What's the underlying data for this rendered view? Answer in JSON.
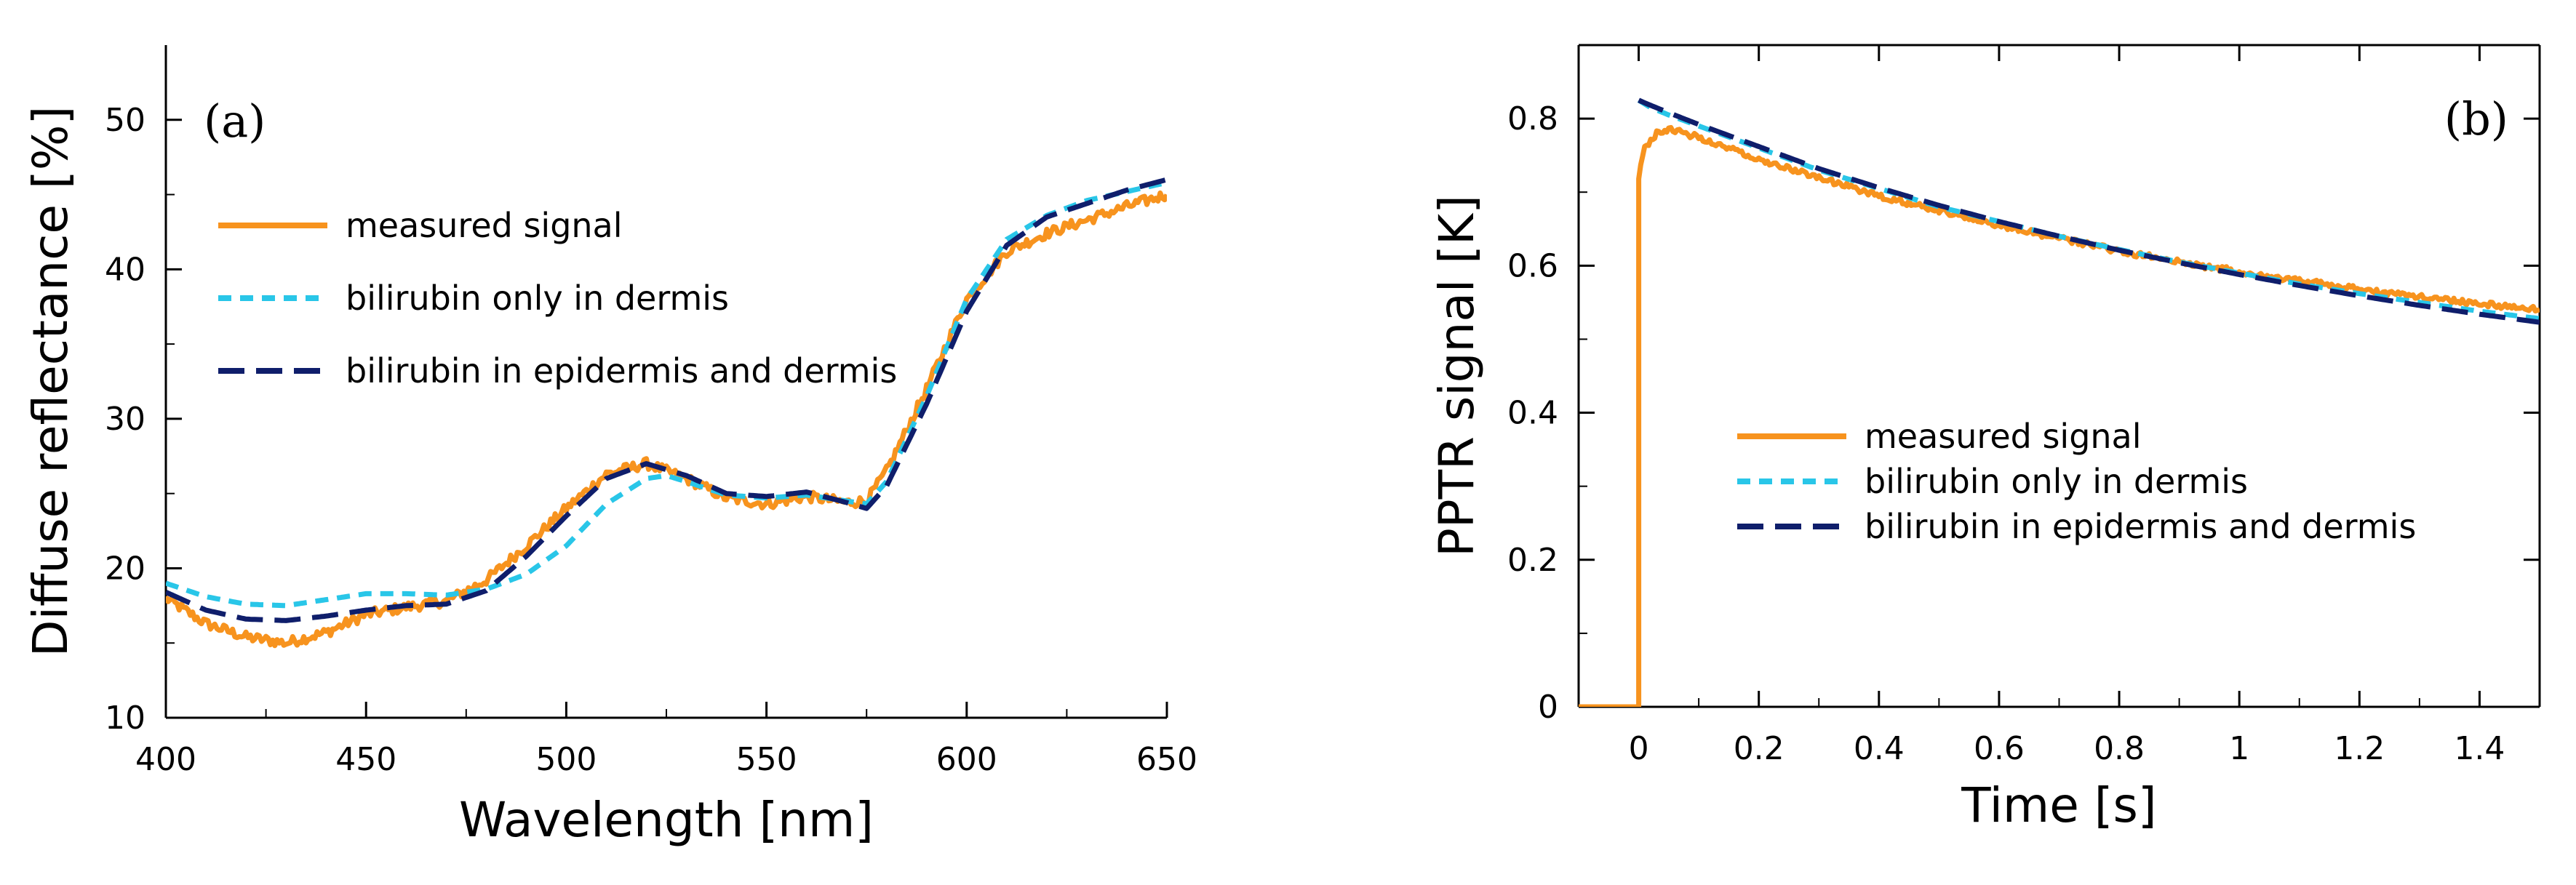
{
  "colors": {
    "measured": "#F7931E",
    "dermis_only": "#29C6E8",
    "epi_dermis": "#0F1E6B",
    "axis": "#000000"
  },
  "chart_data": [
    {
      "type": "line",
      "panel_label": "(a)",
      "title": "",
      "xlabel": "Wavelength [nm]",
      "ylabel": "Diffuse reflectance [%]",
      "xlim": [
        400,
        650
      ],
      "ylim": [
        10,
        55
      ],
      "xticks": [
        400,
        450,
        500,
        550,
        600,
        650
      ],
      "xtick_labels": [
        "400",
        "450",
        "500",
        "550",
        "600",
        "650"
      ],
      "yticks": [
        10,
        20,
        30,
        40,
        50
      ],
      "ytick_labels": [
        "10",
        "20",
        "30",
        "40",
        "50"
      ],
      "legend_position": "upper-left",
      "series": [
        {
          "name": "measured signal",
          "key": "measured",
          "noise": 0.35,
          "x": [
            400,
            410,
            420,
            430,
            440,
            450,
            460,
            470,
            480,
            490,
            500,
            510,
            520,
            530,
            540,
            550,
            560,
            570,
            575,
            580,
            590,
            600,
            610,
            620,
            630,
            640,
            650
          ],
          "y": [
            18,
            16.3,
            15.4,
            15.0,
            15.7,
            16.9,
            17.4,
            17.8,
            19.2,
            21.5,
            24.0,
            26.3,
            27.0,
            26.0,
            24.7,
            24.3,
            24.8,
            24.4,
            24.5,
            26.5,
            32.0,
            38.0,
            41.2,
            42.4,
            43.3,
            44.2,
            45.0
          ]
        },
        {
          "name": "bilirubin only in dermis",
          "key": "dermis_only",
          "noise": 0,
          "x": [
            400,
            410,
            420,
            430,
            440,
            450,
            460,
            470,
            480,
            490,
            500,
            510,
            520,
            525,
            530,
            540,
            550,
            560,
            570,
            575,
            580,
            590,
            600,
            610,
            620,
            630,
            640,
            650
          ],
          "y": [
            19.0,
            18.1,
            17.6,
            17.5,
            17.9,
            18.3,
            18.3,
            18.2,
            18.6,
            19.6,
            21.5,
            24.3,
            26.0,
            26.2,
            25.8,
            24.9,
            24.7,
            24.9,
            24.5,
            24.3,
            25.8,
            31.5,
            38.0,
            42.0,
            43.6,
            44.6,
            45.2,
            45.8
          ]
        },
        {
          "name": "bilirubin in epidermis and dermis",
          "key": "epi_dermis",
          "noise": 0,
          "x": [
            400,
            410,
            420,
            430,
            440,
            450,
            460,
            470,
            480,
            490,
            500,
            510,
            520,
            530,
            540,
            550,
            560,
            570,
            575,
            580,
            590,
            600,
            610,
            620,
            630,
            640,
            650
          ],
          "y": [
            18.4,
            17.2,
            16.6,
            16.5,
            16.8,
            17.2,
            17.5,
            17.6,
            18.5,
            20.8,
            23.5,
            26.0,
            27.0,
            26.2,
            25.0,
            24.8,
            25.1,
            24.4,
            24.0,
            25.5,
            31.0,
            37.2,
            41.6,
            43.5,
            44.4,
            45.3,
            46.0
          ]
        }
      ]
    },
    {
      "type": "line",
      "panel_label": "(b)",
      "title": "",
      "xlabel": "Time [s]",
      "ylabel": "PPTR signal [K]",
      "xlim": [
        -0.1,
        1.5
      ],
      "ylim": [
        0,
        0.9
      ],
      "xticks": [
        0,
        0.2,
        0.4,
        0.6,
        0.8,
        1.0,
        1.2,
        1.4
      ],
      "xtick_labels": [
        "0",
        "0.2",
        "0.4",
        "0.6",
        "0.8",
        "1",
        "1.2",
        "1.4"
      ],
      "yticks": [
        0,
        0.2,
        0.4,
        0.6,
        0.8
      ],
      "ytick_labels": [
        "0",
        "0.2",
        "0.4",
        "0.6",
        "0.8"
      ],
      "legend_position": "center-left",
      "series": [
        {
          "name": "measured signal",
          "key": "measured",
          "noise": 0.004,
          "x": [
            -0.1,
            0,
            0,
            0.01,
            0.03,
            0.05,
            0.1,
            0.2,
            0.3,
            0.4,
            0.5,
            0.6,
            0.7,
            0.8,
            0.9,
            1.0,
            1.1,
            1.2,
            1.3,
            1.4,
            1.5
          ],
          "y": [
            0,
            0,
            0.72,
            0.76,
            0.78,
            0.785,
            0.775,
            0.745,
            0.72,
            0.695,
            0.675,
            0.655,
            0.637,
            0.62,
            0.605,
            0.592,
            0.58,
            0.568,
            0.558,
            0.549,
            0.54
          ]
        },
        {
          "name": "bilirubin only in dermis",
          "key": "dermis_only",
          "noise": 0,
          "x": [
            0,
            0.02,
            0.05,
            0.1,
            0.2,
            0.3,
            0.4,
            0.5,
            0.6,
            0.7,
            0.8,
            0.9,
            1.0,
            1.1,
            1.2,
            1.3,
            1.4,
            1.5
          ],
          "y": [
            0.825,
            0.815,
            0.805,
            0.79,
            0.76,
            0.73,
            0.705,
            0.68,
            0.66,
            0.64,
            0.622,
            0.605,
            0.59,
            0.575,
            0.562,
            0.55,
            0.538,
            0.528
          ]
        },
        {
          "name": "bilirubin in epidermis and dermis",
          "key": "epi_dermis",
          "noise": 0,
          "x": [
            0,
            0.02,
            0.05,
            0.1,
            0.2,
            0.3,
            0.4,
            0.5,
            0.6,
            0.7,
            0.8,
            0.9,
            1.0,
            1.1,
            1.2,
            1.3,
            1.4,
            1.5
          ],
          "y": [
            0.825,
            0.818,
            0.808,
            0.792,
            0.762,
            0.732,
            0.706,
            0.682,
            0.66,
            0.64,
            0.621,
            0.604,
            0.588,
            0.573,
            0.559,
            0.546,
            0.534,
            0.523
          ]
        }
      ]
    }
  ]
}
